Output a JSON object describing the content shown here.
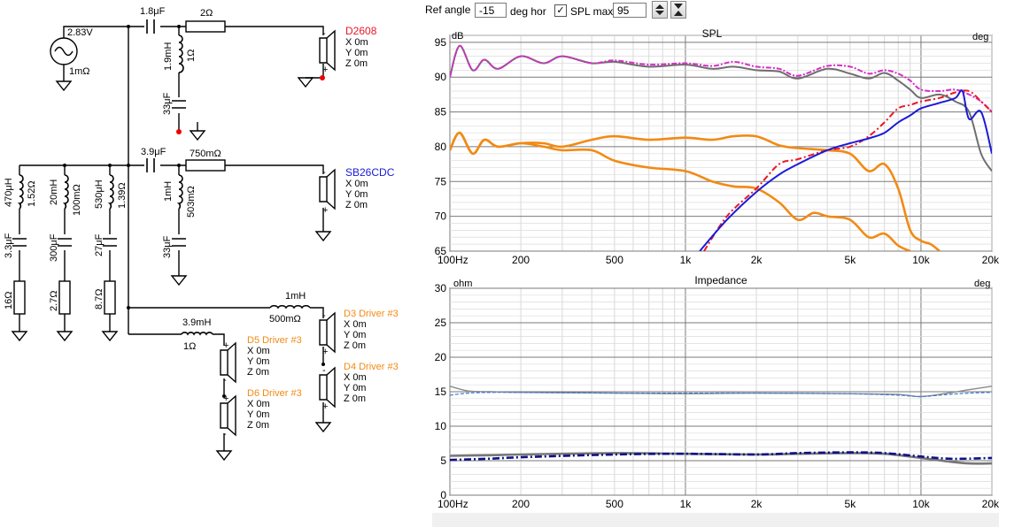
{
  "toolbar": {
    "ref_angle_label": "Ref angle",
    "ref_angle_value": "-15",
    "deg_hor_label": "deg hor",
    "spl_max_checked": "✓",
    "spl_max_label": "SPL max",
    "spl_max_value": "95"
  },
  "schematic": {
    "generator": {
      "voltage": "2.83V",
      "resistance": "1mΩ"
    },
    "tweeter_branch": {
      "series_cap": "1.8μF",
      "series_res": "2Ω",
      "shunt_l": "1.9mH",
      "shunt_l_r": "1Ω",
      "shunt_c": "33μF",
      "driver": {
        "name": "D2608",
        "x": "X 0m",
        "y": "Y 0m",
        "z": "Z 0m"
      }
    },
    "mid_branch": {
      "series_cap": "3.9μF",
      "series_res": "750mΩ",
      "shunt_l": "1mH",
      "shunt_l_r": "503mΩ",
      "shunt_c": "33μF",
      "driver": {
        "name": "SB26CDC",
        "x": "X 0m",
        "y": "Y 0m",
        "z": "Z 0m"
      }
    },
    "notch_1": {
      "l": "470μH",
      "l_r": "1.52Ω",
      "c": "3.3μF",
      "r": "16Ω"
    },
    "notch_2": {
      "l": "20mH",
      "l_r": "100mΩ",
      "c": "300μF",
      "r": "2.7Ω"
    },
    "notch_3": {
      "l": "530μH",
      "l_r": "1.39Ω",
      "c": "27μF",
      "r": "8.7Ω"
    },
    "woofer_upper": {
      "l": "1mH",
      "l_r": "500mΩ",
      "driver_a": {
        "name": "D3 Driver #3",
        "x": "X 0m",
        "y": "Y 0m",
        "z": "Z 0m"
      },
      "driver_b": {
        "name": "D4 Driver #3",
        "x": "X 0m",
        "y": "Y 0m",
        "z": "Z 0m"
      }
    },
    "woofer_lower": {
      "l": "3.9mH",
      "l_r": "1Ω",
      "driver_a": {
        "name": "D5 Driver #3",
        "x": "X 0m",
        "y": "Y 0m",
        "z": "Z 0m"
      },
      "driver_b": {
        "name": "D6 Driver #3",
        "x": "X 0m",
        "y": "Y 0m",
        "z": "Z 0m"
      }
    },
    "colors": {
      "d2608": "#e8182a",
      "sb26": "#1a1ad8",
      "woofer": "#f28a14",
      "wire": "#000000"
    }
  },
  "spl_chart": {
    "title": "SPL",
    "y_unit": "dB",
    "y2_unit": "deg",
    "y_ticks": [
      "95",
      "90",
      "85",
      "80",
      "75",
      "70",
      "65"
    ],
    "x_ticks": [
      "100Hz",
      "200",
      "500",
      "1k",
      "2k",
      "5k",
      "10k",
      "20k"
    ]
  },
  "imp_chart": {
    "title": "Impedance",
    "y_unit": "ohm",
    "y2_unit": "deg",
    "y_ticks": [
      "30",
      "25",
      "20",
      "15",
      "10",
      "5",
      "0"
    ],
    "x_ticks": [
      "100Hz",
      "200",
      "500",
      "1k",
      "2k",
      "5k",
      "10k",
      "20k"
    ]
  },
  "chart_data": [
    {
      "type": "line",
      "title": "SPL",
      "ylabel": "dB",
      "xscale": "log",
      "xlim": [
        100,
        20000
      ],
      "ylim": [
        65,
        96
      ],
      "series": [
        {
          "name": "Total SPL (grey)",
          "color": "#6e6e6e",
          "x": [
            100,
            110,
            125,
            140,
            160,
            200,
            250,
            300,
            400,
            500,
            700,
            1000,
            1300,
            1600,
            2000,
            2500,
            3000,
            4000,
            5000,
            6000,
            7000,
            8000,
            9000,
            10000,
            12000,
            14000,
            16000,
            18000,
            20000
          ],
          "y": [
            90.0,
            94.5,
            91.0,
            92.5,
            91.2,
            93.0,
            92.0,
            93.0,
            92.0,
            92.2,
            91.5,
            91.8,
            91.2,
            91.5,
            91.0,
            90.8,
            89.8,
            91.2,
            90.5,
            89.8,
            90.6,
            89.5,
            88.2,
            87.0,
            87.5,
            86.5,
            85.0,
            79.0,
            76.5
          ]
        },
        {
          "name": "Total SPL (magenta)",
          "color": "#d42fc8",
          "x": [
            100,
            110,
            125,
            140,
            160,
            200,
            250,
            300,
            400,
            500,
            700,
            1000,
            1300,
            1600,
            2000,
            2500,
            3000,
            4000,
            5000,
            6000,
            7000,
            8000,
            9000,
            10000,
            12000,
            14000,
            16000,
            18000,
            20000
          ],
          "y": [
            90.0,
            94.5,
            91.0,
            92.5,
            91.2,
            93.0,
            92.0,
            93.0,
            92.0,
            92.4,
            91.8,
            92.0,
            91.6,
            92.2,
            91.5,
            91.2,
            90.2,
            91.6,
            91.5,
            90.5,
            91.0,
            90.5,
            89.5,
            88.2,
            88.0,
            88.2,
            87.5,
            86.5,
            85.0
          ]
        },
        {
          "name": "Woofer upper (orange)",
          "color": "#f28a14",
          "x": [
            100,
            110,
            125,
            140,
            160,
            200,
            250,
            300,
            400,
            500,
            700,
            1000,
            1300,
            1600,
            2000,
            2500,
            3000,
            4000,
            5000,
            6000,
            7000,
            8000,
            9000,
            10000,
            11000,
            12000
          ],
          "y": [
            79.5,
            82.0,
            79.0,
            81.0,
            80.0,
            80.5,
            80.5,
            80.0,
            81.0,
            81.5,
            81.0,
            81.3,
            81.0,
            81.5,
            81.5,
            80.2,
            79.8,
            79.5,
            79.0,
            76.5,
            77.5,
            74.0,
            68.0,
            66.5,
            66.0,
            65.0
          ]
        },
        {
          "name": "Woofer lower (orange)",
          "color": "#f28a14",
          "x": [
            100,
            110,
            125,
            140,
            160,
            200,
            250,
            300,
            400,
            500,
            700,
            1000,
            1300,
            1600,
            2000,
            2500,
            3000,
            3500,
            4000,
            5000,
            6000,
            7000,
            8000,
            9000
          ],
          "y": [
            79.5,
            82.0,
            79.0,
            81.0,
            80.0,
            80.5,
            80.0,
            79.5,
            79.5,
            78.0,
            77.0,
            76.5,
            75.0,
            74.3,
            74.0,
            72.0,
            69.5,
            70.5,
            70.0,
            69.5,
            67.0,
            67.5,
            65.8,
            65.0
          ]
        },
        {
          "name": "D2608 (red)",
          "color": "#e8182a",
          "x": [
            1200,
            1500,
            2000,
            2500,
            3000,
            4000,
            5000,
            6000,
            7000,
            8000,
            9000,
            10000,
            12000,
            14000,
            16000,
            18000,
            20000
          ],
          "y": [
            65.0,
            70.0,
            74.0,
            77.5,
            78.2,
            79.5,
            80.0,
            81.5,
            83.5,
            85.5,
            86.0,
            86.5,
            87.0,
            87.8,
            88.0,
            86.5,
            85.0
          ]
        },
        {
          "name": "SB26CDC (blue)",
          "color": "#1a1ad8",
          "x": [
            1150,
            1500,
            2000,
            2500,
            3000,
            4000,
            5000,
            6000,
            7000,
            8000,
            9000,
            10000,
            12000,
            14000,
            15000,
            16000,
            18000,
            20000
          ],
          "y": [
            65.0,
            69.5,
            73.5,
            76.0,
            77.5,
            79.5,
            80.5,
            81.2,
            82.0,
            83.5,
            84.5,
            85.5,
            86.3,
            87.0,
            88.0,
            84.0,
            85.0,
            79.0
          ]
        }
      ]
    },
    {
      "type": "line",
      "title": "Impedance",
      "ylabel": "ohm",
      "xscale": "log",
      "xlim": [
        100,
        20000
      ],
      "ylim": [
        0,
        30
      ],
      "series": [
        {
          "name": "Impedance grey (upper)",
          "color": "#8a8a8a",
          "x": [
            100,
            120,
            150,
            200,
            500,
            1000,
            2000,
            5000,
            8000,
            10000,
            13000,
            16000,
            20000
          ],
          "y": [
            15.8,
            15.1,
            15.0,
            14.9,
            14.8,
            14.7,
            14.8,
            14.7,
            14.6,
            14.3,
            14.8,
            15.3,
            15.8
          ]
        },
        {
          "name": "Impedance blue (upper)",
          "color": "#3a7ad8",
          "x": [
            100,
            120,
            150,
            200,
            500,
            1000,
            2000,
            5000,
            8000,
            10000,
            13000,
            16000,
            20000
          ],
          "y": [
            14.5,
            14.8,
            14.9,
            14.9,
            14.8,
            14.8,
            14.8,
            14.7,
            14.5,
            14.3,
            14.6,
            14.8,
            14.9
          ]
        },
        {
          "name": "Impedance grey (lower)",
          "color": "#777777",
          "x": [
            100,
            150,
            200,
            500,
            1000,
            2000,
            3000,
            5000,
            7000,
            10000,
            13000,
            16000,
            20000
          ],
          "y": [
            5.7,
            5.8,
            5.9,
            6.1,
            6.0,
            5.9,
            6.0,
            6.1,
            6.0,
            5.4,
            4.9,
            4.6,
            4.6
          ]
        },
        {
          "name": "Impedance navy (lower)",
          "color": "#10108a",
          "x": [
            100,
            150,
            200,
            500,
            1000,
            2000,
            3000,
            5000,
            7000,
            10000,
            13000,
            16000,
            20000
          ],
          "y": [
            5.1,
            5.3,
            5.5,
            5.9,
            6.0,
            5.9,
            6.1,
            6.2,
            6.1,
            5.6,
            5.3,
            5.3,
            5.4
          ]
        }
      ]
    }
  ]
}
